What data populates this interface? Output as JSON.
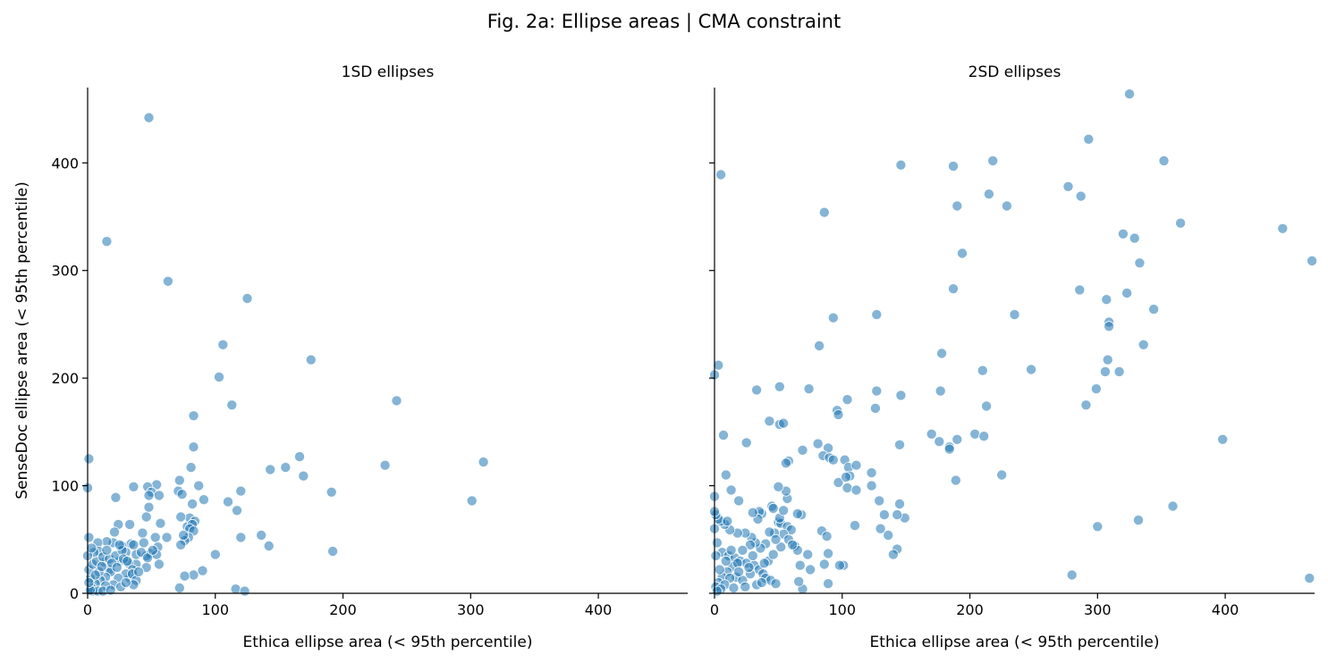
{
  "title": "Fig. 2a: Ellipse areas | CMA constraint",
  "colors": {
    "point_fill": "#1f77b4",
    "point_stroke": "#ffffff",
    "axis": "#000000"
  },
  "chart_data": [
    {
      "type": "scatter",
      "title": "1SD ellipses",
      "xlabel": "Ethica ellipse area (< 95th percentile)",
      "ylabel": "SenseDoc ellipse area (< 95th percentile)",
      "xlim": [
        0,
        470
      ],
      "ylim": [
        0,
        470
      ],
      "xticks": [
        0,
        100,
        200,
        300,
        400
      ],
      "yticks": [
        0,
        100,
        200,
        300,
        400
      ],
      "grid": false,
      "points": [
        [
          48,
          442
        ],
        [
          15,
          327
        ],
        [
          63,
          290
        ],
        [
          125,
          274
        ],
        [
          106,
          231
        ],
        [
          175,
          217
        ],
        [
          103,
          201
        ],
        [
          113,
          175
        ],
        [
          242,
          179
        ],
        [
          83,
          165
        ],
        [
          83,
          136
        ],
        [
          1,
          125
        ],
        [
          310,
          122
        ],
        [
          233,
          119
        ],
        [
          166,
          127
        ],
        [
          143,
          115
        ],
        [
          155,
          117
        ],
        [
          169,
          109
        ],
        [
          81,
          117
        ],
        [
          36,
          99
        ],
        [
          54,
          101
        ],
        [
          47,
          99
        ],
        [
          0,
          98
        ],
        [
          72,
          105
        ],
        [
          87,
          100
        ],
        [
          82,
          83
        ],
        [
          71,
          95
        ],
        [
          50,
          94
        ],
        [
          56,
          91
        ],
        [
          48,
          91
        ],
        [
          74,
          92
        ],
        [
          91,
          87
        ],
        [
          120,
          95
        ],
        [
          110,
          85
        ],
        [
          22,
          89
        ],
        [
          301,
          86
        ],
        [
          191,
          94
        ],
        [
          117,
          77
        ],
        [
          48,
          80
        ],
        [
          78,
          62
        ],
        [
          80,
          70
        ],
        [
          84,
          67
        ],
        [
          73,
          71
        ],
        [
          82,
          64
        ],
        [
          80,
          60
        ],
        [
          57,
          65
        ],
        [
          46,
          71
        ],
        [
          24,
          64
        ],
        [
          33,
          64
        ],
        [
          43,
          56
        ],
        [
          62,
          52
        ],
        [
          83,
          58
        ],
        [
          79,
          52
        ],
        [
          76,
          49
        ],
        [
          73,
          45
        ],
        [
          75,
          54
        ],
        [
          53,
          52
        ],
        [
          34,
          46
        ],
        [
          27,
          44
        ],
        [
          44,
          47
        ],
        [
          120,
          52
        ],
        [
          136,
          54
        ],
        [
          142,
          44
        ],
        [
          192,
          39
        ],
        [
          100,
          36
        ],
        [
          90,
          21
        ],
        [
          83,
          17
        ],
        [
          76,
          16
        ],
        [
          56,
          27
        ],
        [
          46,
          24
        ],
        [
          38,
          27
        ],
        [
          49,
          37
        ],
        [
          55,
          43
        ],
        [
          54,
          36
        ],
        [
          46,
          35
        ],
        [
          38,
          36
        ],
        [
          42,
          38
        ],
        [
          36,
          45
        ],
        [
          30,
          38
        ],
        [
          20,
          47
        ],
        [
          15,
          48
        ],
        [
          8,
          47
        ],
        [
          1,
          52
        ],
        [
          21,
          57
        ],
        [
          9,
          39
        ],
        [
          13,
          29
        ],
        [
          17,
          22
        ],
        [
          25,
          30
        ],
        [
          32,
          28
        ],
        [
          35,
          22
        ],
        [
          33,
          14
        ],
        [
          30,
          18
        ],
        [
          24,
          14
        ],
        [
          18,
          20
        ],
        [
          14,
          15
        ],
        [
          20,
          8
        ],
        [
          26,
          6
        ],
        [
          10,
          12
        ],
        [
          6,
          9
        ],
        [
          3,
          5
        ],
        [
          2,
          14
        ],
        [
          1,
          22
        ],
        [
          4,
          27
        ],
        [
          7,
          30
        ],
        [
          12,
          34
        ],
        [
          17,
          32
        ],
        [
          22,
          35
        ],
        [
          27,
          40
        ],
        [
          35,
          18
        ],
        [
          38,
          12
        ],
        [
          36,
          8
        ],
        [
          5,
          38
        ],
        [
          9,
          20
        ],
        [
          14,
          7
        ],
        [
          19,
          28
        ],
        [
          23,
          24
        ],
        [
          28,
          32
        ],
        [
          6,
          17
        ],
        [
          11,
          25
        ],
        [
          4,
          2
        ],
        [
          8,
          2
        ],
        [
          12,
          2
        ],
        [
          2,
          3
        ],
        [
          116,
          4
        ],
        [
          123,
          2
        ],
        [
          72,
          5
        ],
        [
          0,
          35
        ],
        [
          1,
          10
        ],
        [
          15,
          40
        ],
        [
          25,
          45
        ],
        [
          31,
          30
        ],
        [
          40,
          20
        ],
        [
          47,
          33
        ],
        [
          51,
          40
        ],
        [
          18,
          3
        ],
        [
          30,
          10
        ],
        [
          3,
          42
        ]
      ]
    },
    {
      "type": "scatter",
      "title": "2SD ellipses",
      "xlabel": "Ethica ellipse area (< 95th percentile)",
      "ylabel": "",
      "xlim": [
        0,
        470
      ],
      "ylim": [
        0,
        470
      ],
      "xticks": [
        0,
        100,
        200,
        300,
        400
      ],
      "yticks": [
        0,
        100,
        200,
        300,
        400
      ],
      "grid": false,
      "points": [
        [
          325,
          464
        ],
        [
          5,
          389
        ],
        [
          293,
          422
        ],
        [
          146,
          398
        ],
        [
          187,
          397
        ],
        [
          218,
          402
        ],
        [
          352,
          402
        ],
        [
          86,
          354
        ],
        [
          190,
          360
        ],
        [
          215,
          371
        ],
        [
          229,
          360
        ],
        [
          277,
          378
        ],
        [
          287,
          369
        ],
        [
          445,
          339
        ],
        [
          320,
          334
        ],
        [
          329,
          330
        ],
        [
          365,
          344
        ],
        [
          194,
          316
        ],
        [
          333,
          307
        ],
        [
          468,
          309
        ],
        [
          187,
          283
        ],
        [
          286,
          282
        ],
        [
          307,
          273
        ],
        [
          323,
          279
        ],
        [
          93,
          256
        ],
        [
          127,
          259
        ],
        [
          235,
          259
        ],
        [
          309,
          252
        ],
        [
          309,
          248
        ],
        [
          344,
          264
        ],
        [
          3,
          212
        ],
        [
          0,
          203
        ],
        [
          82,
          230
        ],
        [
          178,
          223
        ],
        [
          210,
          207
        ],
        [
          248,
          208
        ],
        [
          308,
          217
        ],
        [
          317,
          206
        ],
        [
          306,
          206
        ],
        [
          336,
          231
        ],
        [
          33,
          189
        ],
        [
          51,
          192
        ],
        [
          74,
          190
        ],
        [
          104,
          180
        ],
        [
          127,
          188
        ],
        [
          146,
          184
        ],
        [
          177,
          188
        ],
        [
          126,
          172
        ],
        [
          96,
          170
        ],
        [
          97,
          166
        ],
        [
          299,
          190
        ],
        [
          291,
          175
        ],
        [
          213,
          174
        ],
        [
          190,
          143
        ],
        [
          43,
          160
        ],
        [
          51,
          157
        ],
        [
          54,
          158
        ],
        [
          7,
          147
        ],
        [
          25,
          140
        ],
        [
          58,
          123
        ],
        [
          56,
          121
        ],
        [
          69,
          133
        ],
        [
          81,
          139
        ],
        [
          89,
          135
        ],
        [
          85,
          128
        ],
        [
          90,
          126
        ],
        [
          93,
          124
        ],
        [
          102,
          124
        ],
        [
          105,
          117
        ],
        [
          106,
          109
        ],
        [
          111,
          119
        ],
        [
          123,
          112
        ],
        [
          145,
          138
        ],
        [
          170,
          148
        ],
        [
          176,
          141
        ],
        [
          184,
          136
        ],
        [
          184,
          134
        ],
        [
          204,
          148
        ],
        [
          211,
          146
        ],
        [
          225,
          110
        ],
        [
          189,
          105
        ],
        [
          123,
          100
        ],
        [
          97,
          103
        ],
        [
          103,
          108
        ],
        [
          104,
          98
        ],
        [
          111,
          96
        ],
        [
          129,
          86
        ],
        [
          145,
          83
        ],
        [
          149,
          70
        ],
        [
          143,
          73
        ],
        [
          133,
          73
        ],
        [
          143,
          41
        ],
        [
          140,
          36
        ],
        [
          136,
          54
        ],
        [
          130,
          60
        ],
        [
          110,
          63
        ],
        [
          89,
          37
        ],
        [
          84,
          58
        ],
        [
          88,
          53
        ],
        [
          86,
          27
        ],
        [
          101,
          26
        ],
        [
          98,
          26
        ],
        [
          73,
          36
        ],
        [
          75,
          22
        ],
        [
          67,
          26
        ],
        [
          69,
          4
        ],
        [
          89,
          9
        ],
        [
          66,
          11
        ],
        [
          63,
          44
        ],
        [
          65,
          40
        ],
        [
          68,
          73
        ],
        [
          65,
          74
        ],
        [
          57,
          88
        ],
        [
          56,
          95
        ],
        [
          50,
          99
        ],
        [
          45,
          81
        ],
        [
          37,
          74
        ],
        [
          35,
          76
        ],
        [
          34,
          69
        ],
        [
          30,
          75
        ],
        [
          50,
          66
        ],
        [
          52,
          65
        ],
        [
          51,
          70
        ],
        [
          46,
          79
        ],
        [
          54,
          77
        ],
        [
          57,
          62
        ],
        [
          60,
          59
        ],
        [
          54,
          55
        ],
        [
          47,
          56
        ],
        [
          43,
          57
        ],
        [
          40,
          46
        ],
        [
          36,
          42
        ],
        [
          32,
          47
        ],
        [
          29,
          52
        ],
        [
          24,
          56
        ],
        [
          18,
          56
        ],
        [
          12,
          59
        ],
        [
          8,
          64
        ],
        [
          5,
          67
        ],
        [
          3,
          69
        ],
        [
          1,
          73
        ],
        [
          0,
          76
        ],
        [
          0,
          90
        ],
        [
          9,
          110
        ],
        [
          13,
          96
        ],
        [
          19,
          86
        ],
        [
          10,
          67
        ],
        [
          0,
          60
        ],
        [
          2,
          47
        ],
        [
          6,
          38
        ],
        [
          11,
          35
        ],
        [
          16,
          33
        ],
        [
          20,
          30
        ],
        [
          25,
          28
        ],
        [
          31,
          26
        ],
        [
          35,
          22
        ],
        [
          38,
          18
        ],
        [
          40,
          14
        ],
        [
          44,
          12
        ],
        [
          48,
          9
        ],
        [
          14,
          25
        ],
        [
          10,
          20
        ],
        [
          6,
          15
        ],
        [
          3,
          10
        ],
        [
          1,
          6
        ],
        [
          17,
          15
        ],
        [
          22,
          12
        ],
        [
          28,
          18
        ],
        [
          33,
          8
        ],
        [
          37,
          10
        ],
        [
          30,
          35
        ],
        [
          28,
          45
        ],
        [
          22,
          40
        ],
        [
          18,
          28
        ],
        [
          12,
          14
        ],
        [
          8,
          8
        ],
        [
          5,
          4
        ],
        [
          2,
          2
        ],
        [
          15,
          5
        ],
        [
          24,
          6
        ],
        [
          42,
          30
        ],
        [
          46,
          36
        ],
        [
          52,
          43
        ],
        [
          48,
          50
        ],
        [
          58,
          50
        ],
        [
          61,
          45
        ],
        [
          39,
          28
        ],
        [
          27,
          24
        ],
        [
          19,
          20
        ],
        [
          13,
          40
        ],
        [
          9,
          30
        ],
        [
          4,
          22
        ],
        [
          1,
          35
        ],
        [
          398,
          143
        ],
        [
          359,
          81
        ],
        [
          332,
          68
        ],
        [
          300,
          62
        ],
        [
          280,
          17
        ],
        [
          466,
          14
        ]
      ]
    }
  ]
}
